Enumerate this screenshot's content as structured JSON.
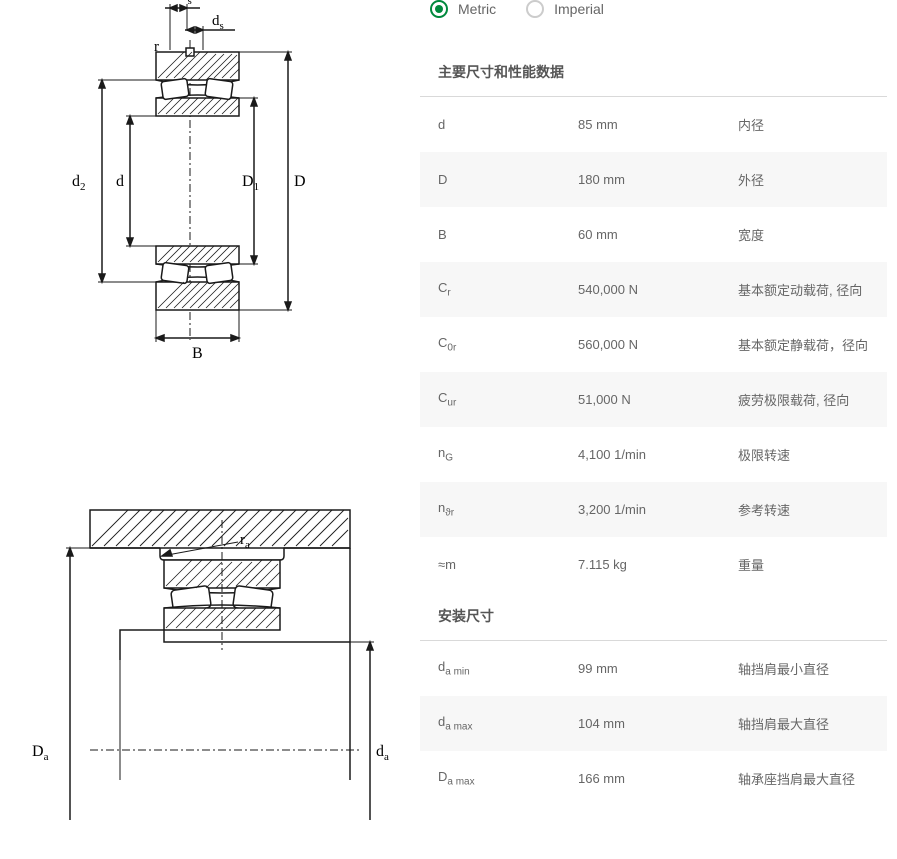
{
  "units": {
    "metric_label": "Metric",
    "imperial_label": "Imperial",
    "selected": "metric"
  },
  "colors": {
    "accent": "#00893d",
    "diagram_stroke": "#1a1a1a",
    "diagram_hatch": "#1a1a1a",
    "alt_row_bg": "#f7f7f7",
    "text": "#666666",
    "divider": "#d9d9d9"
  },
  "diagram1": {
    "labels": {
      "ns": "n",
      "ns_sub": "s",
      "ds": "d",
      "ds_sub": "s",
      "r": "r",
      "d2": "d",
      "d2_sub": "2",
      "d": "d",
      "D1": "D",
      "D1_sub": "1",
      "D": "D",
      "B": "B"
    }
  },
  "diagram2": {
    "labels": {
      "ra": "r",
      "ra_sub": "a",
      "Da": "D",
      "Da_sub": "a",
      "da": "d",
      "da_sub": "a"
    }
  },
  "sections": [
    {
      "title": "主要尺寸和性能数据",
      "rows": [
        {
          "symbol": "d",
          "sub": "",
          "value": "85 mm",
          "desc": "内径"
        },
        {
          "symbol": "D",
          "sub": "",
          "value": "180 mm",
          "desc": "外径"
        },
        {
          "symbol": "B",
          "sub": "",
          "value": "60 mm",
          "desc": "宽度"
        },
        {
          "symbol": "C",
          "sub": "r",
          "value": "540,000 N",
          "desc": "基本额定动载荷, 径向"
        },
        {
          "symbol": "C",
          "sub": "0r",
          "value": "560,000 N",
          "desc": "基本额定静载荷，径向"
        },
        {
          "symbol": "C",
          "sub": "ur",
          "value": "51,000 N",
          "desc": "疲劳极限载荷, 径向"
        },
        {
          "symbol": "n",
          "sub": "G",
          "value": "4,100 1/min",
          "desc": "极限转速"
        },
        {
          "symbol": "n",
          "sub": "ϑr",
          "value": "3,200 1/min",
          "desc": "参考转速"
        },
        {
          "symbol": "≈m",
          "sub": "",
          "value": "7.115 kg",
          "desc": "重量"
        }
      ]
    },
    {
      "title": "安装尺寸",
      "rows": [
        {
          "symbol": "d",
          "sub": "a min",
          "value": "99 mm",
          "desc": "轴挡肩最小直径"
        },
        {
          "symbol": "d",
          "sub": "a max",
          "value": "104 mm",
          "desc": "轴挡肩最大直径"
        },
        {
          "symbol": "D",
          "sub": "a max",
          "value": "166 mm",
          "desc": "轴承座挡肩最大直径"
        }
      ]
    }
  ]
}
